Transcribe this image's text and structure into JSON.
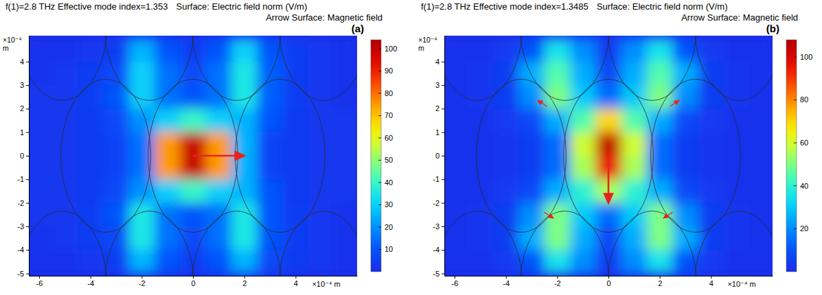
{
  "chart_data": [
    {
      "type": "heatmap",
      "title": "f(1)=2.8 THz Effective mode index=1.353",
      "surface_label": "Surface: Electric field norm (V/m)",
      "arrow_label": "Arrow Surface: Magnetic field",
      "panel_label": "(a)",
      "xlabel": "×10⁻⁴ m",
      "ylabel": "×10⁻⁴ m",
      "xlim": [
        -6.4,
        6.4
      ],
      "ylim": [
        -5.1,
        5.1
      ],
      "xticks": [
        -6,
        -4,
        -2,
        0,
        2,
        4
      ],
      "yticks": [
        -5,
        -4,
        -3,
        -2,
        -1,
        0,
        1,
        2,
        3,
        4
      ],
      "x": [
        -6,
        -5,
        -4,
        -3,
        -2,
        -1,
        0,
        1,
        2,
        3,
        4,
        5,
        6
      ],
      "y": [
        4.5,
        3.5,
        2.5,
        1.5,
        0.5,
        -0.5,
        -1.5,
        -2.5,
        -3.5,
        -4.5
      ],
      "values": [
        [
          2,
          2,
          3,
          5,
          25,
          10,
          5,
          10,
          30,
          10,
          5,
          3,
          2
        ],
        [
          2,
          3,
          5,
          8,
          30,
          15,
          8,
          15,
          35,
          12,
          5,
          3,
          2
        ],
        [
          3,
          3,
          5,
          10,
          30,
          15,
          10,
          15,
          35,
          12,
          5,
          3,
          2
        ],
        [
          3,
          3,
          4,
          8,
          20,
          30,
          40,
          30,
          25,
          10,
          4,
          3,
          3
        ],
        [
          3,
          3,
          4,
          6,
          15,
          75,
          100,
          75,
          25,
          6,
          4,
          3,
          3
        ],
        [
          3,
          3,
          4,
          6,
          15,
          75,
          100,
          75,
          25,
          6,
          4,
          3,
          3
        ],
        [
          3,
          3,
          4,
          8,
          20,
          30,
          40,
          30,
          25,
          10,
          4,
          3,
          3
        ],
        [
          3,
          3,
          5,
          10,
          35,
          15,
          10,
          15,
          35,
          10,
          5,
          3,
          2
        ],
        [
          2,
          3,
          5,
          8,
          35,
          15,
          8,
          15,
          35,
          10,
          5,
          3,
          2
        ],
        [
          2,
          2,
          3,
          5,
          25,
          10,
          5,
          10,
          25,
          8,
          4,
          3,
          2
        ]
      ],
      "color_range": [
        0,
        104
      ],
      "color_ticks": [
        10,
        20,
        30,
        40,
        50,
        60,
        70,
        80,
        90,
        100
      ],
      "boundaries": [
        {
          "cx": 0,
          "cy": 0,
          "rx": 1.75,
          "ry": 3.25
        },
        {
          "cx": -3.4,
          "cy": 0,
          "rx": 1.75,
          "ry": 3.25
        },
        {
          "cx": 3.4,
          "cy": 0,
          "rx": 1.75,
          "ry": 3.25
        },
        {
          "cx": -1.7,
          "cy": 5.6,
          "rx": 1.75,
          "ry": 3.25
        },
        {
          "cx": 1.7,
          "cy": 5.6,
          "rx": 1.75,
          "ry": 3.25
        },
        {
          "cx": -1.7,
          "cy": -5.6,
          "rx": 1.75,
          "ry": 3.25
        },
        {
          "cx": 1.7,
          "cy": -5.6,
          "rx": 1.75,
          "ry": 3.25
        },
        {
          "cx": -5.1,
          "cy": 5.6,
          "rx": 1.75,
          "ry": 3.25
        },
        {
          "cx": 5.1,
          "cy": 5.6,
          "rx": 1.75,
          "ry": 3.25
        },
        {
          "cx": -5.1,
          "cy": -5.6,
          "rx": 1.75,
          "ry": 3.25
        },
        {
          "cx": 5.1,
          "cy": -5.6,
          "rx": 1.75,
          "ry": 3.25
        }
      ],
      "arrows": [
        {
          "x": 0,
          "y": 0,
          "u": 2,
          "v": 0
        }
      ]
    },
    {
      "type": "heatmap",
      "title": "f(1)=2.8 THz Effective mode index=1.3485",
      "surface_label": "Surface: Electric field norm (V/m)",
      "arrow_label": "Arrow Surface: Magnetic field",
      "panel_label": "(b)",
      "xlabel": "×10⁻⁴ m",
      "ylabel": "×10⁻⁴ m",
      "xlim": [
        -6.4,
        6.4
      ],
      "ylim": [
        -5.1,
        5.1
      ],
      "xticks": [
        -6,
        -4,
        -2,
        0,
        2,
        4
      ],
      "yticks": [
        -5,
        -4,
        -3,
        -2,
        -1,
        0,
        1,
        2,
        3,
        4
      ],
      "x": [
        -6,
        -5,
        -4,
        -3,
        -2,
        -1,
        0,
        1,
        2,
        3,
        4,
        5,
        6
      ],
      "y": [
        4.5,
        3.5,
        2.5,
        1.5,
        0.5,
        -0.5,
        -1.5,
        -2.5,
        -3.5,
        -4.5
      ],
      "values": [
        [
          2,
          2,
          4,
          10,
          35,
          20,
          5,
          20,
          35,
          10,
          4,
          2,
          2
        ],
        [
          2,
          3,
          5,
          25,
          45,
          25,
          8,
          25,
          45,
          25,
          5,
          3,
          2
        ],
        [
          2,
          3,
          5,
          20,
          50,
          30,
          15,
          30,
          50,
          20,
          5,
          3,
          2
        ],
        [
          2,
          2,
          4,
          8,
          25,
          45,
          70,
          45,
          25,
          8,
          4,
          2,
          2
        ],
        [
          2,
          2,
          3,
          5,
          15,
          60,
          105,
          60,
          15,
          5,
          3,
          2,
          2
        ],
        [
          2,
          2,
          3,
          5,
          15,
          55,
          95,
          55,
          15,
          5,
          3,
          2,
          2
        ],
        [
          2,
          2,
          4,
          8,
          25,
          40,
          55,
          40,
          25,
          8,
          4,
          2,
          2
        ],
        [
          2,
          3,
          5,
          20,
          50,
          30,
          15,
          30,
          50,
          20,
          5,
          3,
          2
        ],
        [
          2,
          3,
          5,
          25,
          50,
          25,
          8,
          25,
          50,
          25,
          5,
          3,
          2
        ],
        [
          2,
          2,
          4,
          10,
          35,
          20,
          5,
          20,
          35,
          10,
          4,
          2,
          2
        ]
      ],
      "color_range": [
        0,
        108
      ],
      "color_ticks": [
        20,
        40,
        60,
        80,
        100
      ],
      "boundaries": [
        {
          "cx": 0,
          "cy": 0,
          "rx": 1.75,
          "ry": 3.25
        },
        {
          "cx": -3.4,
          "cy": 0,
          "rx": 1.75,
          "ry": 3.25
        },
        {
          "cx": 3.4,
          "cy": 0,
          "rx": 1.75,
          "ry": 3.25
        },
        {
          "cx": -1.7,
          "cy": 5.6,
          "rx": 1.75,
          "ry": 3.25
        },
        {
          "cx": 1.7,
          "cy": 5.6,
          "rx": 1.75,
          "ry": 3.25
        },
        {
          "cx": -1.7,
          "cy": -5.6,
          "rx": 1.75,
          "ry": 3.25
        },
        {
          "cx": 1.7,
          "cy": -5.6,
          "rx": 1.75,
          "ry": 3.25
        },
        {
          "cx": -5.1,
          "cy": 5.6,
          "rx": 1.75,
          "ry": 3.25
        },
        {
          "cx": 5.1,
          "cy": 5.6,
          "rx": 1.75,
          "ry": 3.25
        },
        {
          "cx": -5.1,
          "cy": -5.6,
          "rx": 1.75,
          "ry": 3.25
        },
        {
          "cx": 5.1,
          "cy": -5.6,
          "rx": 1.75,
          "ry": 3.25
        }
      ],
      "arrows": [
        {
          "x": 0,
          "y": 0,
          "u": 0,
          "v": -2
        },
        {
          "x": -2.4,
          "y": 2.1,
          "u": -0.35,
          "v": 0.25
        },
        {
          "x": 2.4,
          "y": 2.1,
          "u": 0.35,
          "v": 0.25
        },
        {
          "x": -2.5,
          "y": -2.4,
          "u": 0.35,
          "v": -0.25
        },
        {
          "x": 2.5,
          "y": -2.4,
          "u": -0.35,
          "v": -0.25
        }
      ]
    }
  ]
}
